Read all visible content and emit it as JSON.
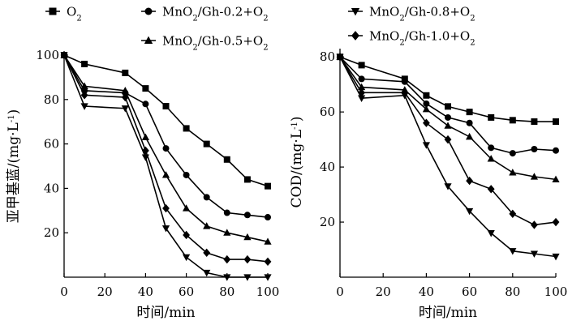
{
  "legend": [
    {
      "marker": "square",
      "parts": [
        [
          "O",
          "normal"
        ],
        [
          "2",
          "sub"
        ]
      ]
    },
    {
      "marker": "circle",
      "parts": [
        [
          "MnO",
          "normal"
        ],
        [
          "2",
          "sub"
        ],
        [
          "/Gh-0.2+O",
          "normal"
        ],
        [
          "2",
          "sub"
        ]
      ]
    },
    {
      "marker": "triangle-up",
      "parts": [
        [
          "MnO",
          "normal"
        ],
        [
          "2",
          "sub"
        ],
        [
          "/Gh-0.5+O",
          "normal"
        ],
        [
          "2",
          "sub"
        ]
      ]
    },
    {
      "marker": "triangle-down",
      "parts": [
        [
          "MnO",
          "normal"
        ],
        [
          "2",
          "sub"
        ],
        [
          "/Gh-0.8+O",
          "normal"
        ],
        [
          "2",
          "sub"
        ]
      ]
    },
    {
      "marker": "diamond",
      "parts": [
        [
          "MnO",
          "normal"
        ],
        [
          "2",
          "sub"
        ],
        [
          "/Gh-1.0+O",
          "normal"
        ],
        [
          "2",
          "sub"
        ]
      ]
    }
  ],
  "chart_data": [
    {
      "type": "line",
      "xlabel": "时间/min",
      "ylabel_parts": [
        [
          "亚甲基蓝/(mg·L",
          "normal"
        ],
        [
          "-1",
          "sup"
        ],
        [
          ")",
          "normal"
        ]
      ],
      "xlim": [
        0,
        100
      ],
      "ylim": [
        0,
        100
      ],
      "xticks": [
        0,
        20,
        40,
        60,
        80,
        100
      ],
      "yticks": [
        20,
        40,
        60,
        80,
        100
      ],
      "x": [
        0,
        10,
        30,
        40,
        50,
        60,
        70,
        80,
        90,
        100
      ],
      "series": [
        {
          "marker": "square",
          "values": [
            100,
            96,
            92,
            85,
            77,
            67,
            60,
            53,
            44,
            41
          ]
        },
        {
          "marker": "circle",
          "values": [
            100,
            84,
            83,
            78,
            58,
            46,
            36,
            29,
            28,
            27
          ]
        },
        {
          "marker": "triangle-up",
          "values": [
            100,
            86,
            84,
            63,
            46,
            31,
            23,
            20,
            18,
            16
          ]
        },
        {
          "marker": "triangle-down",
          "values": [
            100,
            77,
            76,
            54,
            22,
            9,
            2,
            0,
            0,
            0
          ]
        },
        {
          "marker": "diamond",
          "values": [
            100,
            82,
            81,
            57,
            31,
            19,
            11,
            8,
            8,
            7
          ]
        }
      ]
    },
    {
      "type": "line",
      "xlabel": "时间/min",
      "ylabel_parts": [
        [
          "COD/(mg·L",
          "normal"
        ],
        [
          "-1",
          "sup"
        ],
        [
          ")",
          "normal"
        ]
      ],
      "xlim": [
        0,
        100
      ],
      "ylim": [
        0,
        83
      ],
      "xticks": [
        0,
        20,
        40,
        60,
        80,
        100
      ],
      "yticks": [
        20,
        40,
        60,
        80
      ],
      "x": [
        0,
        10,
        30,
        40,
        50,
        60,
        70,
        80,
        90,
        100
      ],
      "series": [
        {
          "marker": "square",
          "values": [
            80,
            77,
            72,
            66,
            62,
            60,
            58,
            57,
            56.5,
            56.5
          ]
        },
        {
          "marker": "circle",
          "values": [
            80,
            72,
            71,
            63,
            58,
            56,
            47,
            45,
            46.5,
            46
          ]
        },
        {
          "marker": "triangle-up",
          "values": [
            80,
            69,
            68,
            61,
            55,
            51,
            43,
            38,
            36.5,
            35.5
          ]
        },
        {
          "marker": "triangle-down",
          "values": [
            80,
            65,
            66,
            48,
            33,
            24,
            16,
            9.5,
            8.5,
            7.5
          ]
        },
        {
          "marker": "diamond",
          "values": [
            80,
            67,
            67,
            56,
            50,
            35,
            32,
            23,
            19,
            20
          ]
        }
      ]
    }
  ]
}
